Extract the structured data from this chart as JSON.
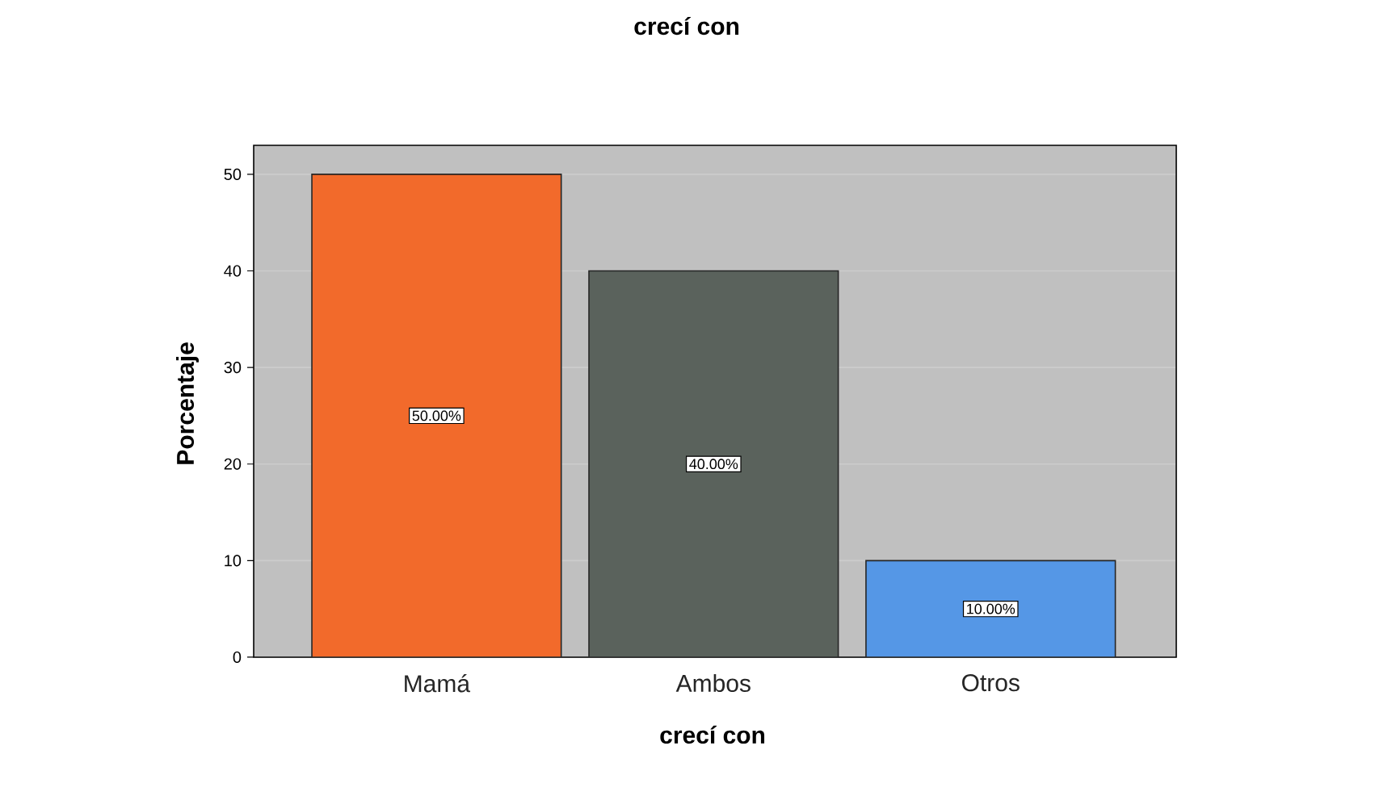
{
  "chart_data": {
    "type": "bar",
    "title": "crecí con",
    "xlabel": "crecí con",
    "ylabel": "Porcentaje",
    "categories": [
      "Mamá",
      "Ambos",
      "Otros"
    ],
    "values": [
      50,
      40,
      10
    ],
    "colors": [
      "#f26a2b",
      "#5a625c",
      "#5597e6"
    ],
    "value_labels": [
      "50.00%",
      "40.00%",
      "10.00%"
    ],
    "ylim": [
      0,
      53
    ],
    "yticks": [
      0,
      10,
      20,
      30,
      40,
      50
    ],
    "grid": "y"
  }
}
